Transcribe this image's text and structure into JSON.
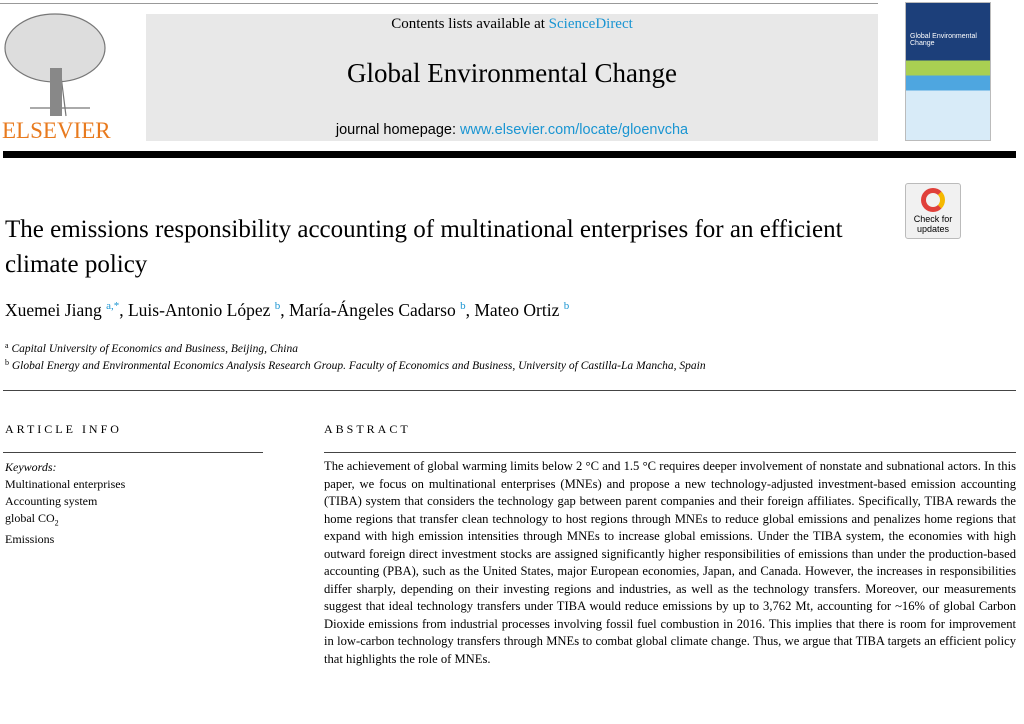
{
  "header": {
    "publisher": "ELSEVIER",
    "contents_prefix": "Contents lists available at ",
    "contents_link": "ScienceDirect",
    "journal_title": "Global Environmental Change",
    "homepage_prefix": "journal homepage: ",
    "homepage_link": "www.elsevier.com/locate/gloenvcha",
    "cover_title": "Global Environmental Change",
    "check_updates": "Check for updates",
    "link_color": "#1a95d2",
    "publisher_color": "#e87a1e"
  },
  "article": {
    "title": "The emissions responsibility accounting of multinational enterprises for an efficient climate policy",
    "authors": [
      {
        "name": "Xuemei Jiang",
        "sup": "a,*"
      },
      {
        "name": "Luis-Antonio López",
        "sup": "b"
      },
      {
        "name": "María-Ángeles Cadarso",
        "sup": "b"
      },
      {
        "name": "Mateo Ortiz",
        "sup": "b"
      }
    ],
    "affiliations": [
      {
        "sup": "a",
        "text": "Capital University of Economics and Business, Beijing, China"
      },
      {
        "sup": "b",
        "text": "Global Energy and Environmental Economics Analysis Research Group. Faculty of Economics and Business, University of Castilla-La Mancha, Spain"
      }
    ]
  },
  "info": {
    "heading": "ARTICLE INFO",
    "keywords_label": "Keywords:",
    "keywords": [
      "Multinational enterprises",
      "Accounting system",
      "global CO",
      "Emissions"
    ],
    "co2_sub": "2"
  },
  "abstract": {
    "heading": "ABSTRACT",
    "text": "The achievement of global warming limits below 2 °C and 1.5 °C requires deeper involvement of nonstate and subnational actors. In this paper, we focus on multinational enterprises (MNEs) and propose a new technology-adjusted investment-based emission accounting (TIBA) system that considers the technology gap between parent companies and their foreign affiliates. Specifically, TIBA rewards the home regions that transfer clean technology to host regions through MNEs to reduce global emissions and penalizes home regions that expand with high emission intensities through MNEs to increase global emissions. Under the TIBA system, the economies with high outward foreign direct investment stocks are assigned significantly higher responsibilities of emissions than under the production-based accounting (PBA), such as the United States, major European economies, Japan, and Canada. However, the increases in responsibilities differ sharply, depending on their investing regions and industries, as well as the technology transfers. Moreover, our measurements suggest that ideal technology transfers under TIBA would reduce emissions by up to 3,762 Mt, accounting for ~16% of global Carbon Dioxide emissions from industrial processes involving fossil fuel combustion in 2016. This implies that there is room for improvement in low-carbon technology transfers through MNEs to combat global climate change. Thus, we argue that TIBA targets an efficient policy that highlights the role of MNEs."
  }
}
